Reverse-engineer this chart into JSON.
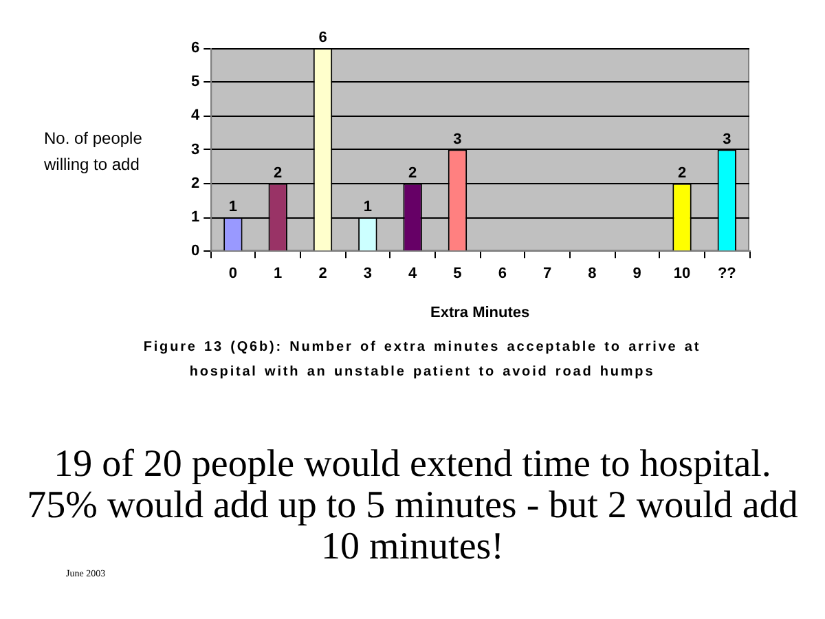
{
  "chart_data": {
    "type": "bar",
    "categories": [
      "0",
      "1",
      "2",
      "3",
      "4",
      "5",
      "6",
      "7",
      "8",
      "9",
      "10",
      "??"
    ],
    "values": [
      1,
      2,
      6,
      1,
      2,
      3,
      0,
      0,
      0,
      0,
      2,
      3
    ],
    "colors": [
      "#9999ff",
      "#993366",
      "#ffffcc",
      "#ccffff",
      "#660066",
      "#ff8080",
      "#0066cc",
      "#ccccff",
      "#000080",
      "#ff00ff",
      "#ffff00",
      "#00ffff"
    ],
    "value_labels": [
      "1",
      "2",
      "6",
      "1",
      "2",
      "3",
      null,
      null,
      null,
      null,
      "2",
      "3"
    ],
    "xlabel": "Extra Minutes",
    "ylabel": "No. of people willing to add",
    "ylim": [
      0,
      6
    ],
    "yticks": [
      0,
      1,
      2,
      3,
      4,
      5,
      6
    ],
    "grid": "y",
    "annotations": [
      "Figure 13 (Q6b):  Number of extra minutes acceptable to arrive at hospital with an unstable patient to avoid road humps",
      "19 of 20 people would extend time to hospital. 75% would add up to 5 minutes - but 2 would add 10 minutes!",
      "June 2003"
    ]
  }
}
